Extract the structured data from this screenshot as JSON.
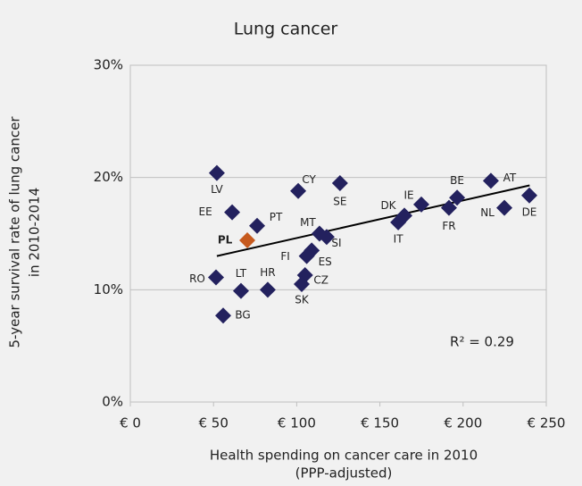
{
  "chart_data": {
    "type": "scatter",
    "title": "Lung cancer",
    "x_label": [
      "Health spending on cancer care in 2010",
      "(PPP-adjusted)"
    ],
    "y_label": [
      "5-year survival rate of lung cancer",
      "in 2010-2014"
    ],
    "annotation": "R² = 0.29",
    "labels": [
      "LV",
      "EE",
      "PT",
      "PL",
      "CY",
      "SE",
      "MT",
      "SI",
      "FI",
      "ES",
      "CZ",
      "SK",
      "HR",
      "LT",
      "RO",
      "BG",
      "DK",
      "IT",
      "IE",
      "FR",
      "BE",
      "AT",
      "NL",
      "DE"
    ],
    "x": [
      52.0,
      61.2,
      76.2,
      70.3,
      100.9,
      126.0,
      113.7,
      118.0,
      106.0,
      109.0,
      105.0,
      103.0,
      82.6,
      66.5,
      51.5,
      55.8,
      164.7,
      161.0,
      174.9,
      191.5,
      196.4,
      216.7,
      224.8,
      239.8
    ],
    "y": [
      20.4,
      16.9,
      15.7,
      14.4,
      18.8,
      19.5,
      15.0,
      14.7,
      13.0,
      13.5,
      11.3,
      10.5,
      10.0,
      9.9,
      11.1,
      7.7,
      16.6,
      16.0,
      17.6,
      17.3,
      18.2,
      19.7,
      17.3,
      18.4
    ],
    "colors": [
      "#23215e",
      "#23215e",
      "#23215e",
      "#c65a1e",
      "#23215e",
      "#23215e",
      "#23215e",
      "#23215e",
      "#23215e",
      "#23215e",
      "#23215e",
      "#23215e",
      "#23215e",
      "#23215e",
      "#23215e",
      "#23215e",
      "#23215e",
      "#23215e",
      "#23215e",
      "#23215e",
      "#23215e",
      "#23215e",
      "#23215e",
      "#23215e"
    ],
    "trendline": {
      "x": [
        52,
        240
      ],
      "y": [
        13.0,
        19.3
      ],
      "color": "#000000"
    },
    "xlim": [
      0,
      250
    ],
    "xticks": [
      {
        "value": 0,
        "label": "€ 0"
      },
      {
        "value": 50,
        "label": "€ 50"
      },
      {
        "value": 100,
        "label": "€ 100"
      },
      {
        "value": 150,
        "label": "€ 150"
      },
      {
        "value": 200,
        "label": "€ 200"
      },
      {
        "value": 250,
        "label": "€ 250"
      }
    ],
    "ylim": [
      0,
      30
    ],
    "yticks": [
      {
        "value": 0,
        "label": "0%"
      },
      {
        "value": 10,
        "label": "10%"
      },
      {
        "value": 20,
        "label": "20%"
      },
      {
        "value": 30,
        "label": "30%"
      }
    ],
    "grid": true
  }
}
